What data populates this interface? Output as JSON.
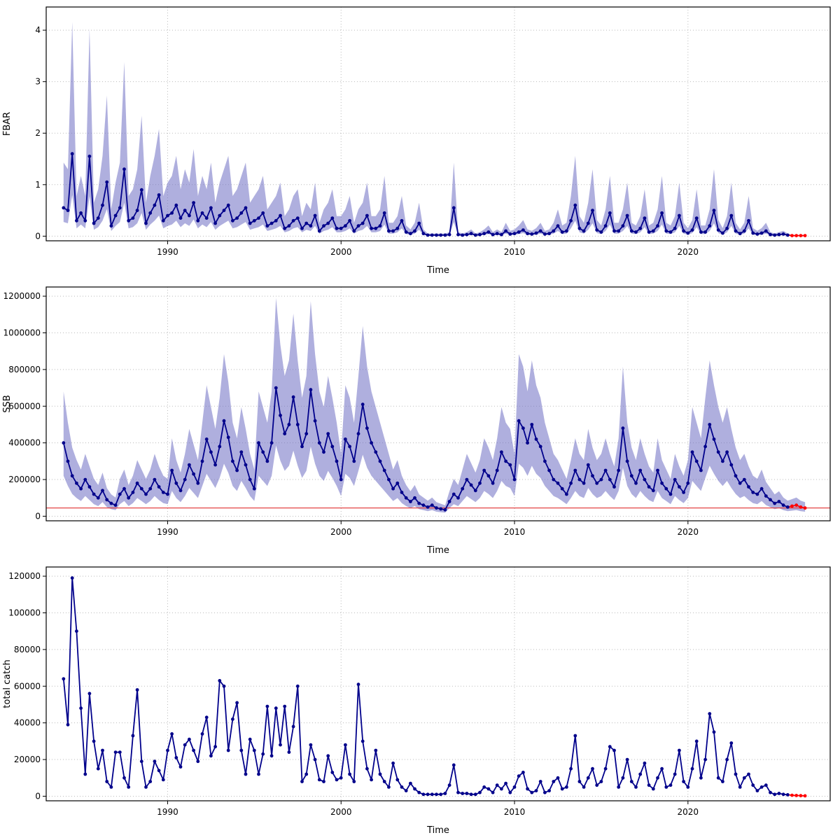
{
  "colors": {
    "line": "#00008B",
    "band": "rgba(110,110,195,0.55)",
    "forecast": "#FF0000",
    "refline": "#E03030",
    "grid": "#BBBBBB",
    "axis": "#000000",
    "frame": "#000000"
  },
  "chart_data": [
    {
      "type": "line",
      "title": "",
      "xlabel": "Time",
      "ylabel": "FBAR",
      "xlim": [
        1983,
        2028.2
      ],
      "ylim": [
        -0.09,
        4.45
      ],
      "xticks": [
        1990,
        2000,
        2010,
        2020
      ],
      "yticks": [
        0,
        1,
        2,
        3,
        4
      ],
      "x_start": 1984.0,
      "x_step": 0.25,
      "grid": true,
      "legend": "none",
      "n_forecast": 4,
      "refline": null,
      "band": {
        "hi_factor": 2.6,
        "lo_factor": 0.5
      },
      "values": [
        0.55,
        0.5,
        1.6,
        0.3,
        0.45,
        0.3,
        1.55,
        0.25,
        0.35,
        0.6,
        1.05,
        0.2,
        0.4,
        0.55,
        1.3,
        0.3,
        0.35,
        0.5,
        0.9,
        0.25,
        0.45,
        0.6,
        0.8,
        0.3,
        0.4,
        0.45,
        0.6,
        0.35,
        0.5,
        0.4,
        0.65,
        0.3,
        0.45,
        0.35,
        0.55,
        0.25,
        0.4,
        0.5,
        0.6,
        0.3,
        0.35,
        0.45,
        0.55,
        0.25,
        0.3,
        0.35,
        0.45,
        0.2,
        0.25,
        0.3,
        0.4,
        0.15,
        0.2,
        0.3,
        0.35,
        0.15,
        0.25,
        0.2,
        0.4,
        0.1,
        0.2,
        0.25,
        0.35,
        0.15,
        0.15,
        0.2,
        0.3,
        0.1,
        0.2,
        0.25,
        0.4,
        0.15,
        0.15,
        0.2,
        0.45,
        0.1,
        0.1,
        0.15,
        0.3,
        0.08,
        0.05,
        0.1,
        0.25,
        0.05,
        0.02,
        0.02,
        0.02,
        0.02,
        0.02,
        0.03,
        0.55,
        0.03,
        0.02,
        0.03,
        0.05,
        0.02,
        0.03,
        0.05,
        0.08,
        0.03,
        0.05,
        0.03,
        0.1,
        0.04,
        0.05,
        0.08,
        0.12,
        0.05,
        0.04,
        0.06,
        0.1,
        0.04,
        0.05,
        0.1,
        0.2,
        0.08,
        0.1,
        0.3,
        0.6,
        0.15,
        0.1,
        0.25,
        0.5,
        0.12,
        0.08,
        0.2,
        0.45,
        0.1,
        0.1,
        0.2,
        0.4,
        0.1,
        0.08,
        0.15,
        0.35,
        0.08,
        0.1,
        0.2,
        0.45,
        0.1,
        0.08,
        0.15,
        0.4,
        0.1,
        0.06,
        0.12,
        0.35,
        0.08,
        0.08,
        0.2,
        0.5,
        0.12,
        0.06,
        0.15,
        0.4,
        0.1,
        0.05,
        0.1,
        0.3,
        0.06,
        0.04,
        0.06,
        0.1,
        0.03,
        0.02,
        0.03,
        0.04,
        0.02,
        0.01,
        0.01,
        0.01,
        0.01
      ]
    },
    {
      "type": "line",
      "title": "",
      "xlabel": "Time",
      "ylabel": "SSB",
      "xlim": [
        1983,
        2028.2
      ],
      "ylim": [
        -25000,
        1250000
      ],
      "xticks": [
        1990,
        2000,
        2010,
        2020
      ],
      "yticks": [
        0,
        200000,
        400000,
        600000,
        800000,
        1000000,
        1200000
      ],
      "x_start": 1984.0,
      "x_step": 0.25,
      "grid": true,
      "legend": "none",
      "n_forecast": 4,
      "refline": 45000,
      "band": {
        "hi_factor": 1.7,
        "lo_factor": 0.55
      },
      "values": [
        400000,
        300000,
        220000,
        180000,
        150000,
        200000,
        160000,
        120000,
        100000,
        140000,
        90000,
        70000,
        60000,
        120000,
        150000,
        100000,
        130000,
        180000,
        150000,
        120000,
        150000,
        200000,
        160000,
        130000,
        120000,
        250000,
        180000,
        140000,
        200000,
        280000,
        230000,
        180000,
        300000,
        420000,
        350000,
        280000,
        380000,
        520000,
        430000,
        300000,
        250000,
        350000,
        280000,
        200000,
        150000,
        400000,
        350000,
        300000,
        400000,
        700000,
        550000,
        450000,
        500000,
        650000,
        500000,
        380000,
        450000,
        690000,
        520000,
        400000,
        350000,
        450000,
        380000,
        300000,
        200000,
        420000,
        380000,
        300000,
        450000,
        610000,
        480000,
        400000,
        350000,
        300000,
        250000,
        200000,
        150000,
        180000,
        130000,
        100000,
        80000,
        100000,
        70000,
        60000,
        50000,
        60000,
        45000,
        40000,
        35000,
        80000,
        120000,
        100000,
        150000,
        200000,
        170000,
        140000,
        180000,
        250000,
        220000,
        180000,
        250000,
        350000,
        300000,
        280000,
        200000,
        520000,
        480000,
        400000,
        500000,
        420000,
        380000,
        300000,
        250000,
        200000,
        180000,
        150000,
        120000,
        180000,
        250000,
        200000,
        180000,
        280000,
        220000,
        180000,
        200000,
        250000,
        200000,
        160000,
        250000,
        480000,
        300000,
        220000,
        180000,
        250000,
        200000,
        160000,
        140000,
        250000,
        180000,
        150000,
        120000,
        200000,
        160000,
        130000,
        180000,
        350000,
        300000,
        250000,
        380000,
        500000,
        420000,
        350000,
        300000,
        350000,
        280000,
        220000,
        180000,
        200000,
        160000,
        130000,
        120000,
        150000,
        110000,
        90000,
        70000,
        80000,
        60000,
        50000,
        55000,
        60000,
        50000,
        45000
      ]
    },
    {
      "type": "line",
      "title": "",
      "xlabel": "Time",
      "ylabel": "total catch",
      "xlim": [
        1983,
        2028.2
      ],
      "ylim": [
        -2500,
        125000
      ],
      "xticks": [
        1990,
        2000,
        2010,
        2020
      ],
      "yticks": [
        0,
        20000,
        40000,
        60000,
        80000,
        100000,
        120000
      ],
      "x_start": 1984.0,
      "x_step": 0.25,
      "grid": true,
      "legend": "none",
      "n_forecast": 4,
      "refline": null,
      "band": null,
      "values": [
        64000,
        39000,
        119000,
        90000,
        48000,
        12000,
        56000,
        30000,
        15000,
        25000,
        8000,
        5000,
        24000,
        24000,
        10000,
        5000,
        33000,
        58000,
        19000,
        5000,
        8000,
        19000,
        14000,
        9000,
        25000,
        34000,
        21000,
        16000,
        28000,
        31000,
        25000,
        19000,
        34000,
        43000,
        22000,
        27000,
        63000,
        60000,
        25000,
        42000,
        51000,
        25000,
        12000,
        31000,
        25000,
        12000,
        23000,
        49000,
        22000,
        48000,
        28000,
        49000,
        24000,
        38000,
        60000,
        8000,
        12000,
        28000,
        20000,
        9000,
        8000,
        22000,
        13000,
        9000,
        10000,
        28000,
        12000,
        8000,
        61000,
        30000,
        15000,
        9000,
        25000,
        12000,
        8000,
        5000,
        18000,
        9000,
        5000,
        3000,
        7000,
        4000,
        2000,
        1000,
        1000,
        1000,
        1000,
        1000,
        1500,
        6000,
        17000,
        2000,
        1500,
        1500,
        1000,
        1000,
        2000,
        5000,
        4000,
        2000,
        6000,
        4000,
        7000,
        2000,
        5000,
        11000,
        13000,
        4000,
        2000,
        3000,
        8000,
        2000,
        3000,
        8000,
        10000,
        4000,
        5000,
        15000,
        33000,
        8000,
        5000,
        10000,
        15000,
        6000,
        8000,
        15000,
        27000,
        25000,
        5000,
        10000,
        20000,
        8000,
        5000,
        12000,
        18000,
        6000,
        4000,
        10000,
        15000,
        5000,
        6000,
        12000,
        25000,
        8000,
        5000,
        15000,
        30000,
        10000,
        20000,
        45000,
        35000,
        10000,
        8000,
        20000,
        29000,
        12000,
        5000,
        10000,
        12000,
        6000,
        3000,
        5000,
        6000,
        2000,
        1000,
        1500,
        1000,
        800,
        500,
        400,
        300,
        200
      ]
    }
  ]
}
